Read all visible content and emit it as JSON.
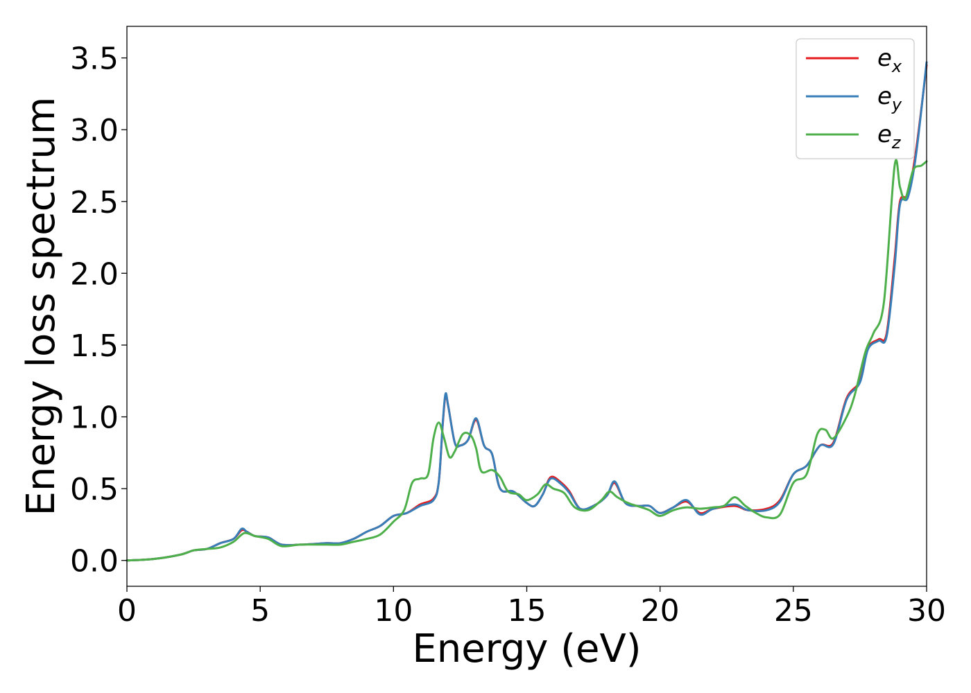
{
  "chart_data": {
    "type": "line",
    "xlabel": "Energy (eV)",
    "ylabel": "Energy loss spectrum",
    "xlim": [
      0,
      30
    ],
    "ylim": [
      -0.18,
      3.72
    ],
    "xticks": [
      0,
      5,
      10,
      15,
      20,
      25,
      30
    ],
    "xtick_labels": [
      "0",
      "5",
      "10",
      "15",
      "20",
      "25",
      "30"
    ],
    "yticks": [
      0.0,
      0.5,
      1.0,
      1.5,
      2.0,
      2.5,
      3.0,
      3.5
    ],
    "ytick_labels": [
      "0.0",
      "0.5",
      "1.0",
      "1.5",
      "2.0",
      "2.5",
      "3.0",
      "3.5"
    ],
    "grid": false,
    "legend_position": "top-right",
    "series": [
      {
        "name": "e_x",
        "legend_base": "e",
        "legend_sub": "x",
        "color": "#e41a1c",
        "points": [
          [
            0,
            0
          ],
          [
            1,
            0.01
          ],
          [
            2,
            0.04
          ],
          [
            2.5,
            0.07
          ],
          [
            3,
            0.08
          ],
          [
            3.5,
            0.12
          ],
          [
            4,
            0.15
          ],
          [
            4.3,
            0.21
          ],
          [
            4.5,
            0.2
          ],
          [
            4.8,
            0.17
          ],
          [
            5.3,
            0.16
          ],
          [
            5.8,
            0.11
          ],
          [
            6.5,
            0.11
          ],
          [
            7.5,
            0.12
          ],
          [
            8,
            0.12
          ],
          [
            8.5,
            0.15
          ],
          [
            9,
            0.2
          ],
          [
            9.5,
            0.24
          ],
          [
            10,
            0.31
          ],
          [
            10.5,
            0.33
          ],
          [
            11,
            0.39
          ],
          [
            11.5,
            0.43
          ],
          [
            11.7,
            0.55
          ],
          [
            11.85,
            0.95
          ],
          [
            11.95,
            1.15
          ],
          [
            12.05,
            1.08
          ],
          [
            12.3,
            0.82
          ],
          [
            12.5,
            0.8
          ],
          [
            12.8,
            0.84
          ],
          [
            13.1,
            0.98
          ],
          [
            13.4,
            0.8
          ],
          [
            13.7,
            0.74
          ],
          [
            14,
            0.5
          ],
          [
            14.5,
            0.48
          ],
          [
            15,
            0.4
          ],
          [
            15.3,
            0.38
          ],
          [
            15.6,
            0.46
          ],
          [
            15.9,
            0.58
          ],
          [
            16.3,
            0.54
          ],
          [
            16.6,
            0.48
          ],
          [
            17,
            0.36
          ],
          [
            17.5,
            0.38
          ],
          [
            18,
            0.45
          ],
          [
            18.3,
            0.54
          ],
          [
            18.7,
            0.4
          ],
          [
            19.2,
            0.38
          ],
          [
            19.6,
            0.38
          ],
          [
            20,
            0.33
          ],
          [
            20.5,
            0.37
          ],
          [
            21,
            0.41
          ],
          [
            21.5,
            0.33
          ],
          [
            22,
            0.36
          ],
          [
            22.8,
            0.38
          ],
          [
            23.3,
            0.35
          ],
          [
            24,
            0.36
          ],
          [
            24.5,
            0.42
          ],
          [
            25,
            0.6
          ],
          [
            25.5,
            0.66
          ],
          [
            26,
            0.8
          ],
          [
            26.5,
            0.82
          ],
          [
            27,
            1.13
          ],
          [
            27.5,
            1.25
          ],
          [
            27.8,
            1.48
          ],
          [
            28.2,
            1.54
          ],
          [
            28.5,
            1.58
          ],
          [
            28.8,
            2.1
          ],
          [
            29,
            2.5
          ],
          [
            29.3,
            2.55
          ],
          [
            29.6,
            2.85
          ],
          [
            30,
            3.45
          ]
        ]
      },
      {
        "name": "e_y",
        "legend_base": "e",
        "legend_sub": "y",
        "color": "#377eb8",
        "points": [
          [
            0,
            0
          ],
          [
            1,
            0.01
          ],
          [
            2,
            0.04
          ],
          [
            2.5,
            0.07
          ],
          [
            3,
            0.08
          ],
          [
            3.5,
            0.12
          ],
          [
            4,
            0.15
          ],
          [
            4.3,
            0.22
          ],
          [
            4.5,
            0.2
          ],
          [
            4.8,
            0.17
          ],
          [
            5.3,
            0.16
          ],
          [
            5.8,
            0.11
          ],
          [
            6.5,
            0.11
          ],
          [
            7.5,
            0.12
          ],
          [
            8,
            0.12
          ],
          [
            8.5,
            0.15
          ],
          [
            9,
            0.2
          ],
          [
            9.5,
            0.24
          ],
          [
            10,
            0.31
          ],
          [
            10.5,
            0.33
          ],
          [
            11,
            0.38
          ],
          [
            11.5,
            0.42
          ],
          [
            11.7,
            0.55
          ],
          [
            11.85,
            0.96
          ],
          [
            11.95,
            1.16
          ],
          [
            12.05,
            1.08
          ],
          [
            12.3,
            0.82
          ],
          [
            12.5,
            0.8
          ],
          [
            12.8,
            0.84
          ],
          [
            13.1,
            0.99
          ],
          [
            13.4,
            0.8
          ],
          [
            13.7,
            0.74
          ],
          [
            14,
            0.5
          ],
          [
            14.5,
            0.48
          ],
          [
            15,
            0.4
          ],
          [
            15.3,
            0.38
          ],
          [
            15.6,
            0.46
          ],
          [
            15.9,
            0.57
          ],
          [
            16.3,
            0.53
          ],
          [
            16.6,
            0.47
          ],
          [
            17,
            0.36
          ],
          [
            17.5,
            0.38
          ],
          [
            18,
            0.45
          ],
          [
            18.3,
            0.55
          ],
          [
            18.7,
            0.4
          ],
          [
            19.2,
            0.38
          ],
          [
            19.6,
            0.38
          ],
          [
            20,
            0.33
          ],
          [
            20.5,
            0.37
          ],
          [
            21,
            0.42
          ],
          [
            21.5,
            0.32
          ],
          [
            22,
            0.36
          ],
          [
            22.8,
            0.39
          ],
          [
            23.3,
            0.35
          ],
          [
            24,
            0.35
          ],
          [
            24.5,
            0.41
          ],
          [
            25,
            0.6
          ],
          [
            25.5,
            0.66
          ],
          [
            26,
            0.8
          ],
          [
            26.5,
            0.81
          ],
          [
            27,
            1.12
          ],
          [
            27.5,
            1.24
          ],
          [
            27.8,
            1.47
          ],
          [
            28.2,
            1.53
          ],
          [
            28.5,
            1.56
          ],
          [
            28.8,
            2.05
          ],
          [
            29,
            2.48
          ],
          [
            29.3,
            2.53
          ],
          [
            29.6,
            2.82
          ],
          [
            30,
            3.47
          ]
        ]
      },
      {
        "name": "e_z",
        "legend_base": "e",
        "legend_sub": "z",
        "color": "#4daf4a",
        "points": [
          [
            0,
            0
          ],
          [
            1,
            0.01
          ],
          [
            2,
            0.04
          ],
          [
            2.5,
            0.07
          ],
          [
            3,
            0.08
          ],
          [
            3.5,
            0.09
          ],
          [
            4,
            0.13
          ],
          [
            4.4,
            0.19
          ],
          [
            4.8,
            0.17
          ],
          [
            5.3,
            0.15
          ],
          [
            5.8,
            0.1
          ],
          [
            6.5,
            0.11
          ],
          [
            7.5,
            0.11
          ],
          [
            8,
            0.11
          ],
          [
            8.5,
            0.13
          ],
          [
            9,
            0.15
          ],
          [
            9.5,
            0.18
          ],
          [
            10,
            0.27
          ],
          [
            10.4,
            0.35
          ],
          [
            10.7,
            0.54
          ],
          [
            11,
            0.57
          ],
          [
            11.3,
            0.6
          ],
          [
            11.5,
            0.85
          ],
          [
            11.7,
            0.96
          ],
          [
            11.9,
            0.85
          ],
          [
            12.1,
            0.72
          ],
          [
            12.3,
            0.76
          ],
          [
            12.6,
            0.88
          ],
          [
            12.9,
            0.87
          ],
          [
            13.1,
            0.78
          ],
          [
            13.3,
            0.62
          ],
          [
            13.7,
            0.63
          ],
          [
            14,
            0.58
          ],
          [
            14.3,
            0.48
          ],
          [
            14.7,
            0.46
          ],
          [
            15,
            0.42
          ],
          [
            15.4,
            0.46
          ],
          [
            15.7,
            0.53
          ],
          [
            16,
            0.5
          ],
          [
            16.4,
            0.47
          ],
          [
            16.8,
            0.37
          ],
          [
            17.3,
            0.35
          ],
          [
            17.8,
            0.42
          ],
          [
            18.1,
            0.48
          ],
          [
            18.4,
            0.44
          ],
          [
            18.8,
            0.4
          ],
          [
            19.3,
            0.37
          ],
          [
            19.6,
            0.35
          ],
          [
            20,
            0.31
          ],
          [
            20.5,
            0.35
          ],
          [
            21,
            0.37
          ],
          [
            21.5,
            0.36
          ],
          [
            22,
            0.37
          ],
          [
            22.4,
            0.38
          ],
          [
            22.8,
            0.44
          ],
          [
            23.2,
            0.38
          ],
          [
            23.6,
            0.33
          ],
          [
            24,
            0.3
          ],
          [
            24.5,
            0.32
          ],
          [
            25,
            0.54
          ],
          [
            25.5,
            0.6
          ],
          [
            25.9,
            0.88
          ],
          [
            26.2,
            0.91
          ],
          [
            26.5,
            0.85
          ],
          [
            27,
            1.0
          ],
          [
            27.3,
            1.15
          ],
          [
            27.7,
            1.45
          ],
          [
            28,
            1.58
          ],
          [
            28.4,
            1.8
          ],
          [
            28.8,
            2.75
          ],
          [
            29,
            2.6
          ],
          [
            29.2,
            2.52
          ],
          [
            29.5,
            2.72
          ],
          [
            29.8,
            2.75
          ],
          [
            30,
            2.78
          ]
        ]
      }
    ]
  }
}
